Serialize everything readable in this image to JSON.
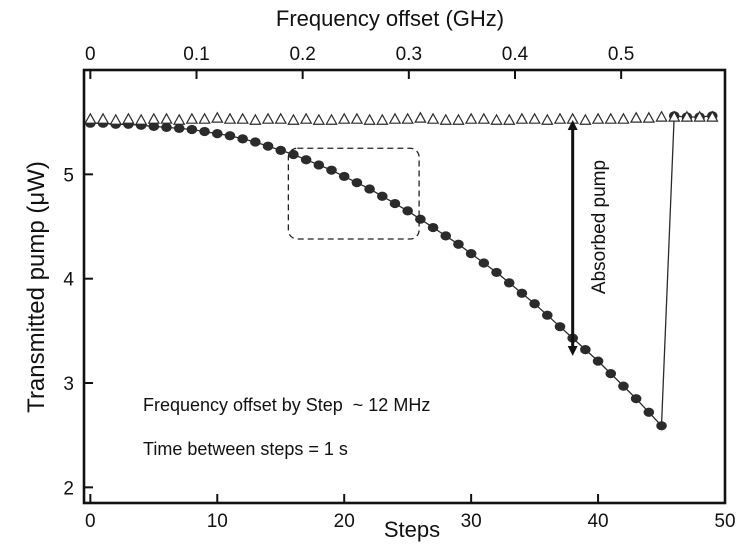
{
  "chart_data": {
    "type": "scatter",
    "title": "",
    "xlabel": "Steps",
    "ylabel": "Transmitted pump (μW)",
    "top_xlabel": "Frequency offset (GHz)",
    "xlim": [
      -0.5,
      50
    ],
    "ylim": [
      1.85,
      6.0
    ],
    "top_xlim": [
      0,
      0.55
    ],
    "x_ticks": [
      0,
      10,
      20,
      30,
      40,
      50
    ],
    "x_tick_labels": [
      "0",
      "10",
      "20",
      "30",
      "40",
      "50"
    ],
    "y_ticks": [
      2,
      3,
      4,
      5
    ],
    "y_tick_labels": [
      "2",
      "3",
      "4",
      "5"
    ],
    "top_ticks": [
      0,
      0.1,
      0.2,
      0.3,
      0.4,
      0.5
    ],
    "top_tick_labels": [
      "0",
      "0.1",
      "0.2",
      "0.3",
      "0.4",
      "0.5"
    ],
    "grid": false,
    "series": [
      {
        "marker": "filled-circle",
        "line": true,
        "color": "#2b2b2b",
        "x": [
          0,
          1,
          2,
          3,
          4,
          5,
          6,
          7,
          8,
          9,
          10,
          11,
          12,
          13,
          14,
          15,
          16,
          17,
          18,
          19,
          20,
          21,
          22,
          23,
          24,
          25,
          26,
          27,
          28,
          29,
          30,
          31,
          32,
          33,
          34,
          35,
          36,
          37,
          38,
          39,
          40,
          41,
          42,
          43,
          44,
          45,
          46,
          47,
          48,
          49
        ],
        "y": [
          5.49,
          5.49,
          5.48,
          5.48,
          5.47,
          5.46,
          5.45,
          5.44,
          5.43,
          5.41,
          5.39,
          5.37,
          5.34,
          5.31,
          5.27,
          5.23,
          5.19,
          5.14,
          5.09,
          5.04,
          4.98,
          4.92,
          4.86,
          4.79,
          4.72,
          4.65,
          4.57,
          4.49,
          4.41,
          4.33,
          4.24,
          4.15,
          4.06,
          3.96,
          3.86,
          3.76,
          3.65,
          3.54,
          3.43,
          3.32,
          3.21,
          3.09,
          2.97,
          2.85,
          2.72,
          2.59,
          5.56,
          5.55,
          5.55,
          5.56
        ]
      },
      {
        "marker": "open-triangle",
        "line": false,
        "color": "#2b2b2b",
        "x": [
          0,
          1,
          2,
          3,
          4,
          5,
          6,
          7,
          8,
          9,
          10,
          11,
          12,
          13,
          14,
          15,
          16,
          17,
          18,
          19,
          20,
          21,
          22,
          23,
          24,
          25,
          26,
          27,
          28,
          29,
          30,
          31,
          32,
          33,
          34,
          35,
          36,
          37,
          38,
          39,
          40,
          41,
          42,
          43,
          44,
          45,
          46,
          47,
          48,
          49
        ],
        "y": [
          5.53,
          5.53,
          5.52,
          5.53,
          5.52,
          5.53,
          5.53,
          5.52,
          5.53,
          5.53,
          5.54,
          5.53,
          5.53,
          5.52,
          5.53,
          5.53,
          5.52,
          5.53,
          5.52,
          5.52,
          5.53,
          5.53,
          5.52,
          5.52,
          5.53,
          5.53,
          5.54,
          5.53,
          5.52,
          5.52,
          5.53,
          5.53,
          5.52,
          5.52,
          5.53,
          5.53,
          5.52,
          5.53,
          5.53,
          5.52,
          5.53,
          5.53,
          5.53,
          5.54,
          5.54,
          5.55,
          5.55,
          5.55,
          5.55,
          5.55
        ]
      }
    ],
    "annotations": {
      "absorbed_label": "Absorbed pump",
      "step_text": "Frequency offset by Step  ~ 12 MHz",
      "time_text": "Time between steps = 1 s",
      "arrow_x": 38,
      "arrow_y_top": 5.53,
      "arrow_y_bottom": 3.25,
      "dashed_box": {
        "x0": 15.6,
        "x1": 25.9,
        "y0": 4.38,
        "y1": 5.25
      }
    }
  }
}
